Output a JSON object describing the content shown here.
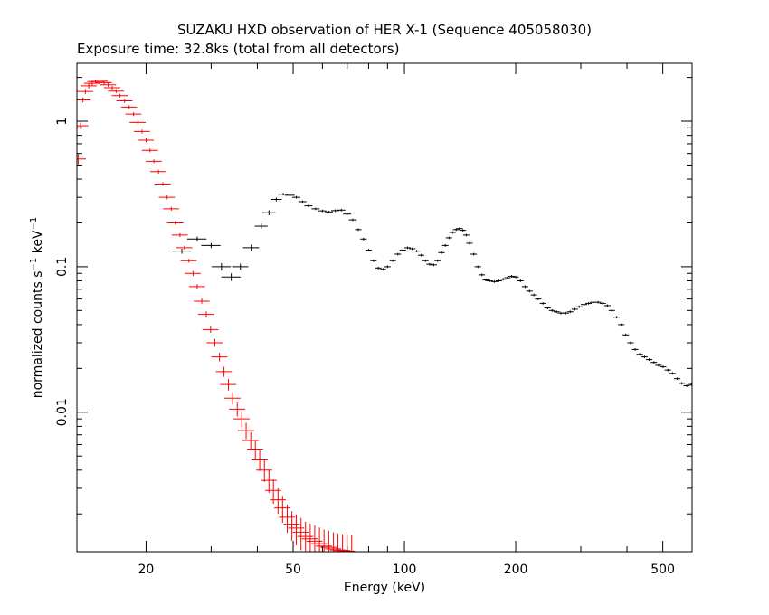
{
  "chart_data": {
    "type": "scatter",
    "title": "SUZAKU HXD observation of HER X-1 (Sequence 405058030)",
    "subtitle": "Exposure time: 32.8ks (total from all detectors)",
    "xlabel": "Energy (keV)",
    "ylabel_main": "normalized counts s",
    "ylabel_mid": " keV",
    "ylabel_sup": "−1",
    "x_scale": "log",
    "y_scale": "log",
    "xlim": [
      13,
      600
    ],
    "ylim": [
      0.0011,
      2.5
    ],
    "x_ticks": [
      {
        "value": 20,
        "label": "20"
      },
      {
        "value": 50,
        "label": "50"
      },
      {
        "value": 100,
        "label": "100"
      },
      {
        "value": 200,
        "label": "200"
      },
      {
        "value": 500,
        "label": "500"
      }
    ],
    "y_ticks": [
      {
        "value": 1,
        "label": "1"
      },
      {
        "value": 0.1,
        "label": "0.1"
      },
      {
        "value": 0.01,
        "label": "0.01"
      }
    ],
    "grid": false,
    "colors": {
      "pin": "#ff0000",
      "gso": "#000000",
      "axes": "#000000"
    },
    "series": [
      {
        "color": "#ff0000",
        "points": [
          [
            13.1,
            0.55,
            0.08,
            0.1
          ],
          [
            13.3,
            0.93,
            0.05,
            0.1
          ],
          [
            13.5,
            1.4,
            0.04,
            0.1
          ],
          [
            13.7,
            1.6,
            0.04,
            0.1
          ],
          [
            14.0,
            1.75,
            0.04,
            0.1
          ],
          [
            14.3,
            1.82,
            0.03,
            0.1
          ],
          [
            14.6,
            1.87,
            0.03,
            0.1
          ],
          [
            15.0,
            1.88,
            0.03,
            0.1
          ],
          [
            15.4,
            1.84,
            0.03,
            0.1
          ],
          [
            15.8,
            1.78,
            0.03,
            0.1
          ],
          [
            16.2,
            1.7,
            0.03,
            0.1
          ],
          [
            16.6,
            1.61,
            0.03,
            0.1
          ],
          [
            17.0,
            1.5,
            0.03,
            0.1
          ],
          [
            17.5,
            1.38,
            0.03,
            0.1
          ],
          [
            18.0,
            1.25,
            0.03,
            0.1
          ],
          [
            18.5,
            1.12,
            0.03,
            0.1
          ],
          [
            19.0,
            0.98,
            0.03,
            0.1
          ],
          [
            19.5,
            0.85,
            0.03,
            0.1
          ],
          [
            20.0,
            0.74,
            0.03,
            0.1
          ],
          [
            20.5,
            0.63,
            0.03,
            0.1
          ],
          [
            21.0,
            0.53,
            0.03,
            0.1
          ],
          [
            21.6,
            0.45,
            0.03,
            0.1
          ],
          [
            22.2,
            0.37,
            0.03,
            0.1
          ],
          [
            22.8,
            0.3,
            0.03,
            0.1
          ],
          [
            23.4,
            0.25,
            0.03,
            0.1
          ],
          [
            24.0,
            0.2,
            0.03,
            0.1
          ],
          [
            24.7,
            0.165,
            0.03,
            0.1
          ],
          [
            25.4,
            0.135,
            0.03,
            0.1
          ],
          [
            26.1,
            0.11,
            0.03,
            0.1
          ],
          [
            26.8,
            0.09,
            0.04,
            0.1
          ],
          [
            27.5,
            0.073,
            0.04,
            0.1
          ],
          [
            28.3,
            0.058,
            0.04,
            0.1
          ],
          [
            29.1,
            0.047,
            0.05,
            0.1
          ],
          [
            29.9,
            0.037,
            0.05,
            0.1
          ],
          [
            30.7,
            0.03,
            0.06,
            0.1
          ],
          [
            31.6,
            0.024,
            0.07,
            0.1
          ],
          [
            32.5,
            0.019,
            0.08,
            0.1
          ],
          [
            33.4,
            0.0155,
            0.09,
            0.1
          ],
          [
            34.3,
            0.0125,
            0.1,
            0.1
          ],
          [
            35.3,
            0.0105,
            0.11,
            0.1
          ],
          [
            36.3,
            0.009,
            0.12,
            0.1
          ],
          [
            37.3,
            0.0075,
            0.13,
            0.1
          ],
          [
            38.4,
            0.0064,
            0.14,
            0.1
          ],
          [
            39.5,
            0.0055,
            0.15,
            0.1
          ],
          [
            40.6,
            0.0047,
            0.16,
            0.1
          ],
          [
            41.8,
            0.004,
            0.17,
            0.1
          ],
          [
            43.0,
            0.0034,
            0.18,
            0.1
          ],
          [
            44.2,
            0.0029,
            0.19,
            0.1
          ],
          [
            45.5,
            0.0025,
            0.2,
            0.1
          ],
          [
            46.8,
            0.0022,
            0.21,
            0.1
          ],
          [
            48.2,
            0.0019,
            0.22,
            0.1
          ],
          [
            49.6,
            0.0017,
            0.23,
            0.1
          ],
          [
            51.0,
            0.0016,
            0.24,
            0.1
          ],
          [
            52.5,
            0.0015,
            0.25,
            0.1
          ],
          [
            54.0,
            0.0014,
            0.26,
            0.1
          ],
          [
            55.6,
            0.00135,
            0.27,
            0.1
          ],
          [
            57.2,
            0.0013,
            0.28,
            0.1
          ],
          [
            58.9,
            0.00125,
            0.29,
            0.1
          ],
          [
            60.6,
            0.0012,
            0.3,
            0.1
          ],
          [
            62.4,
            0.00118,
            0.3,
            0.1
          ],
          [
            64.2,
            0.00115,
            0.3,
            0.1
          ],
          [
            66.1,
            0.00113,
            0.3,
            0.1
          ],
          [
            68.0,
            0.00112,
            0.3,
            0.1
          ],
          [
            70.0,
            0.00111,
            0.3,
            0.1
          ],
          [
            72.0,
            0.0011,
            0.3,
            0.1
          ]
        ]
      },
      {
        "color": "#000000",
        "points": [
          [
            25.0,
            0.128,
            0.04,
            0.12
          ],
          [
            27.5,
            0.155,
            0.04,
            0.12
          ],
          [
            30.0,
            0.14,
            0.04,
            0.12
          ],
          [
            32.0,
            0.1,
            0.06,
            0.12
          ],
          [
            34.0,
            0.085,
            0.06,
            0.12
          ],
          [
            36.0,
            0.1,
            0.05,
            0.1
          ],
          [
            38.5,
            0.135,
            0.05,
            0.1
          ],
          [
            41.0,
            0.19,
            0.04,
            0.08
          ],
          [
            43.0,
            0.235,
            0.04,
            0.08
          ],
          [
            45.0,
            0.29,
            0.03,
            0.07
          ],
          [
            47.0,
            0.315,
            0.02,
            0.06
          ],
          [
            49.0,
            0.31,
            0.02,
            0.06
          ],
          [
            51.0,
            0.3,
            0.02,
            0.05
          ],
          [
            53.0,
            0.28,
            0.02,
            0.05
          ],
          [
            55.0,
            0.262,
            0.02,
            0.05
          ],
          [
            57.5,
            0.25,
            0.02,
            0.05
          ],
          [
            60.0,
            0.242,
            0.02,
            0.05
          ],
          [
            62.5,
            0.238,
            0.02,
            0.05
          ],
          [
            65.0,
            0.243,
            0.02,
            0.05
          ],
          [
            67.5,
            0.245,
            0.02,
            0.05
          ],
          [
            70.0,
            0.23,
            0.02,
            0.05
          ],
          [
            72.5,
            0.21,
            0.02,
            0.05
          ],
          [
            75.0,
            0.18,
            0.02,
            0.04
          ],
          [
            77.5,
            0.155,
            0.02,
            0.04
          ],
          [
            80.0,
            0.13,
            0.02,
            0.04
          ],
          [
            82.5,
            0.11,
            0.02,
            0.04
          ],
          [
            85.0,
            0.098,
            0.02,
            0.04
          ],
          [
            87.5,
            0.096,
            0.02,
            0.04
          ],
          [
            90.0,
            0.1,
            0.02,
            0.04
          ],
          [
            93.0,
            0.11,
            0.02,
            0.04
          ],
          [
            96.0,
            0.122,
            0.02,
            0.04
          ],
          [
            99.0,
            0.13,
            0.02,
            0.04
          ],
          [
            102.0,
            0.135,
            0.02,
            0.04
          ],
          [
            105.0,
            0.133,
            0.02,
            0.04
          ],
          [
            108.0,
            0.128,
            0.02,
            0.04
          ],
          [
            111.0,
            0.12,
            0.02,
            0.04
          ],
          [
            114.0,
            0.11,
            0.02,
            0.04
          ],
          [
            117.0,
            0.104,
            0.02,
            0.04
          ],
          [
            120.0,
            0.103,
            0.02,
            0.04
          ],
          [
            123.0,
            0.11,
            0.02,
            0.04
          ],
          [
            126.0,
            0.125,
            0.02,
            0.04
          ],
          [
            129.0,
            0.14,
            0.02,
            0.04
          ],
          [
            132.0,
            0.158,
            0.02,
            0.04
          ],
          [
            135.0,
            0.172,
            0.02,
            0.04
          ],
          [
            138.0,
            0.18,
            0.02,
            0.04
          ],
          [
            141.0,
            0.183,
            0.02,
            0.04
          ],
          [
            144.0,
            0.178,
            0.02,
            0.04
          ],
          [
            147.0,
            0.165,
            0.02,
            0.04
          ],
          [
            150.0,
            0.145,
            0.02,
            0.04
          ],
          [
            154.0,
            0.122,
            0.02,
            0.04
          ],
          [
            158.0,
            0.1,
            0.02,
            0.04
          ],
          [
            162.0,
            0.088,
            0.02,
            0.04
          ],
          [
            166.0,
            0.081,
            0.02,
            0.04
          ],
          [
            170.0,
            0.08,
            0.02,
            0.04
          ],
          [
            175.0,
            0.079,
            0.02,
            0.04
          ],
          [
            180.0,
            0.08,
            0.02,
            0.04
          ],
          [
            185.0,
            0.082,
            0.02,
            0.04
          ],
          [
            190.0,
            0.084,
            0.02,
            0.04
          ],
          [
            195.0,
            0.086,
            0.02,
            0.04
          ],
          [
            200.0,
            0.085,
            0.02,
            0.04
          ],
          [
            206.0,
            0.08,
            0.02,
            0.04
          ],
          [
            212.0,
            0.073,
            0.02,
            0.04
          ],
          [
            218.0,
            0.068,
            0.02,
            0.04
          ],
          [
            224.0,
            0.064,
            0.02,
            0.04
          ],
          [
            230.0,
            0.06,
            0.02,
            0.04
          ],
          [
            237.0,
            0.056,
            0.02,
            0.04
          ],
          [
            244.0,
            0.052,
            0.02,
            0.04
          ],
          [
            251.0,
            0.05,
            0.02,
            0.04
          ],
          [
            258.0,
            0.049,
            0.02,
            0.04
          ],
          [
            265.0,
            0.048,
            0.02,
            0.04
          ],
          [
            273.0,
            0.048,
            0.02,
            0.04
          ],
          [
            281.0,
            0.049,
            0.02,
            0.04
          ],
          [
            289.0,
            0.051,
            0.02,
            0.04
          ],
          [
            297.0,
            0.053,
            0.02,
            0.04
          ],
          [
            306.0,
            0.055,
            0.02,
            0.04
          ],
          [
            315.0,
            0.056,
            0.02,
            0.04
          ],
          [
            324.0,
            0.057,
            0.02,
            0.04
          ],
          [
            334.0,
            0.057,
            0.02,
            0.04
          ],
          [
            344.0,
            0.056,
            0.02,
            0.04
          ],
          [
            354.0,
            0.054,
            0.02,
            0.04
          ],
          [
            364.0,
            0.05,
            0.02,
            0.04
          ],
          [
            375.0,
            0.045,
            0.02,
            0.04
          ],
          [
            386.0,
            0.04,
            0.02,
            0.04
          ],
          [
            397.0,
            0.034,
            0.02,
            0.04
          ],
          [
            409.0,
            0.03,
            0.02,
            0.04
          ],
          [
            421.0,
            0.027,
            0.02,
            0.04
          ],
          [
            433.0,
            0.025,
            0.02,
            0.04
          ],
          [
            446.0,
            0.024,
            0.02,
            0.04
          ],
          [
            459.0,
            0.023,
            0.02,
            0.04
          ],
          [
            473.0,
            0.022,
            0.02,
            0.04
          ],
          [
            487.0,
            0.021,
            0.02,
            0.04
          ],
          [
            501.0,
            0.0205,
            0.02,
            0.04
          ],
          [
            516.0,
            0.0195,
            0.02,
            0.04
          ],
          [
            531.0,
            0.0185,
            0.02,
            0.04
          ],
          [
            547.0,
            0.017,
            0.02,
            0.04
          ],
          [
            563.0,
            0.0158,
            0.02,
            0.04
          ],
          [
            580.0,
            0.0152,
            0.02,
            0.04
          ],
          [
            597.0,
            0.0155,
            0.02,
            0.04
          ]
        ]
      }
    ]
  }
}
